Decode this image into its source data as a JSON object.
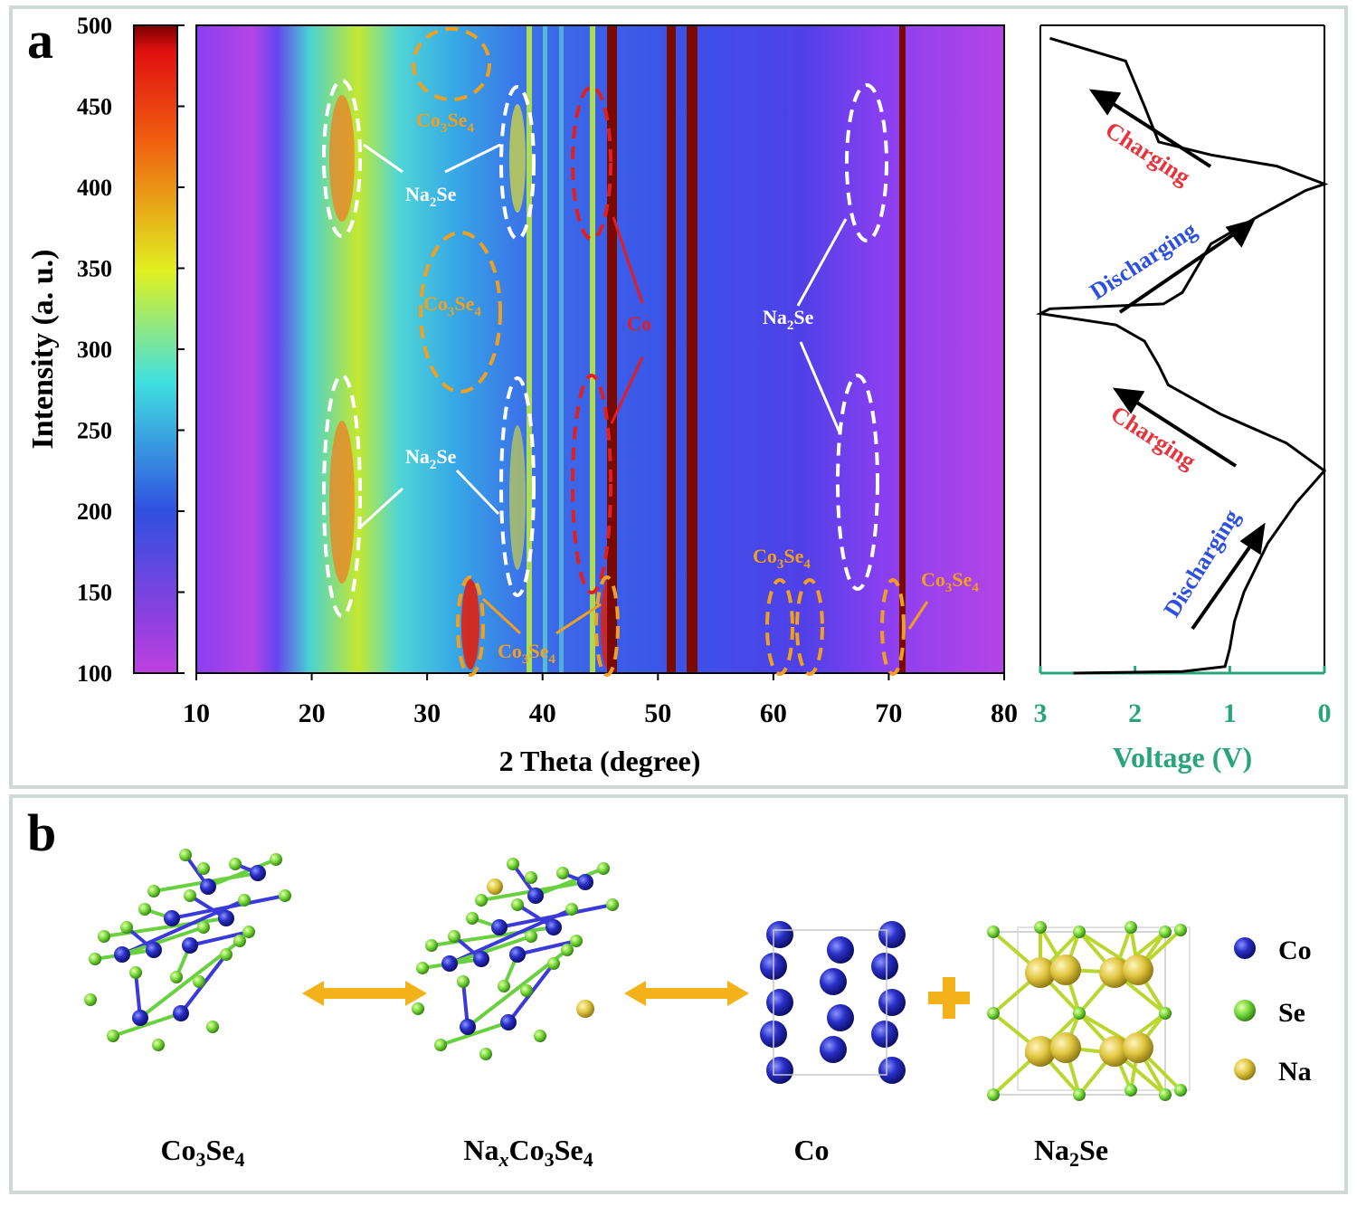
{
  "panel_a": {
    "letter": "a",
    "contour": {
      "xlabel": "2 Theta (degree)",
      "x_ticks": [
        "10",
        "20",
        "30",
        "40",
        "50",
        "60",
        "70",
        "80"
      ],
      "ylabel": "Intensity (a. u.)",
      "y_ticks": [
        "100",
        "150",
        "200",
        "250",
        "300",
        "350",
        "400",
        "450",
        "500"
      ],
      "annotations": {
        "co3se4_top": {
          "main": "Co",
          "sub": "3",
          "main2": "Se",
          "sub2": "4"
        },
        "co3se4_mid": {
          "main": "Co",
          "sub": "3",
          "main2": "Se",
          "sub2": "4"
        },
        "co3se4_bottom": {
          "main": "Co",
          "sub": "3",
          "main2": "Se",
          "sub2": "4"
        },
        "co3se4_60": {
          "main": "Co",
          "sub": "3",
          "main2": "Se",
          "sub2": "4"
        },
        "co3se4_70": {
          "main": "Co",
          "sub": "3",
          "main2": "Se",
          "sub2": "4"
        },
        "na2se_top": {
          "main": "Na",
          "sub": "2",
          "main2": "Se"
        },
        "na2se_bottom": {
          "main": "Na",
          "sub": "2",
          "main2": "Se"
        },
        "na2se_right": {
          "main": "Na",
          "sub": "2",
          "main2": "Se"
        },
        "co": "Co"
      }
    },
    "voltage": {
      "xlabel": "Voltage (V)",
      "x_ticks": [
        "3",
        "2",
        "1",
        "0"
      ],
      "labels": {
        "charging_top": "Charging",
        "discharging_top": "Discharging",
        "charging_bottom": "Charging",
        "discharging_bottom": "Discharging"
      }
    },
    "colors": {
      "voltage_axis": "#2aa57a",
      "charging": "#e8323c",
      "discharging": "#2d4fe0",
      "co3se4_marker": "#f0a020",
      "co_marker": "#e02020",
      "na2se_marker": "#ffffff"
    }
  },
  "panel_b": {
    "letter": "b",
    "structures": [
      {
        "main": "Co",
        "sub": "3",
        "main2": "Se",
        "sub2": "4"
      },
      {
        "main": "Na",
        "sub": "x",
        "main2": "Co",
        "sub2": "3",
        "main3": "Se",
        "sub3": "4"
      },
      {
        "main": "Co"
      },
      {
        "main": "Na",
        "sub": "2",
        "main2": "Se"
      }
    ],
    "legend": [
      {
        "label": "Co",
        "color": "#2a2fc8"
      },
      {
        "label": "Se",
        "color": "#59c12a"
      },
      {
        "label": "Na",
        "color": "#e8d24a"
      }
    ]
  },
  "chart_data": [
    {
      "type": "heatmap",
      "xlabel": "2 Theta (degree)",
      "ylabel": "Intensity (a. u.)",
      "xlim": [
        10,
        80
      ],
      "ylim": [
        100,
        500
      ],
      "colorbar": {
        "range": [
          100,
          500
        ],
        "colors": [
          "#c040e0",
          "#3050e0",
          "#40e0e0",
          "#e0f020",
          "#f06010",
          "#7a0000"
        ]
      },
      "annotations": [
        {
          "label": "Co3Se4",
          "x": 32.3,
          "y": 475
        },
        {
          "label": "Co3Se4",
          "x": 33.5,
          "y": 325
        },
        {
          "label": "Co3Se4",
          "x": 34,
          "y": 128
        },
        {
          "label": "Co3Se4",
          "x": 45.5,
          "y": 128
        },
        {
          "label": "Co3Se4",
          "x": 61,
          "y": 128
        },
        {
          "label": "Co3Se4",
          "x": 62.5,
          "y": 128
        },
        {
          "label": "Co3Se4",
          "x": 70.5,
          "y": 128
        },
        {
          "label": "Na2Se",
          "x": 23,
          "y": 420
        },
        {
          "label": "Na2Se",
          "x": 38,
          "y": 420
        },
        {
          "label": "Na2Se",
          "x": 23,
          "y": 210
        },
        {
          "label": "Na2Se",
          "x": 38,
          "y": 210
        },
        {
          "label": "Na2Se",
          "x": 68,
          "y": 410
        },
        {
          "label": "Na2Se",
          "x": 67,
          "y": 215
        },
        {
          "label": "Co",
          "x": 44.3,
          "y": 410
        },
        {
          "label": "Co",
          "x": 44.3,
          "y": 220
        }
      ]
    },
    {
      "type": "line",
      "xlabel": "Voltage (V)",
      "xlim": [
        3,
        0
      ],
      "series": [
        {
          "name": "",
          "points": [
            [
              2.65,
              100
            ],
            [
              1.5,
              101
            ],
            [
              1.05,
              104
            ],
            [
              1.0,
              115
            ],
            [
              0.95,
              132
            ],
            [
              0.85,
              150
            ],
            [
              0.6,
              180
            ],
            [
              0.3,
              205
            ],
            [
              0.0,
              225
            ],
            [
              0.4,
              242
            ],
            [
              1.1,
              260
            ],
            [
              1.65,
              278
            ],
            [
              1.75,
              290
            ],
            [
              1.9,
              305
            ],
            [
              2.2,
              315
            ],
            [
              3.0,
              322
            ],
            [
              2.9,
              325
            ],
            [
              1.7,
              328
            ],
            [
              1.5,
              335
            ],
            [
              1.35,
              350
            ],
            [
              1.2,
              365
            ],
            [
              0.7,
              382
            ],
            [
              0.2,
              398
            ],
            [
              0.0,
              402
            ],
            [
              0.5,
              413
            ],
            [
              1.2,
              420
            ],
            [
              1.75,
              428
            ],
            [
              1.9,
              450
            ],
            [
              2.1,
              478
            ],
            [
              2.9,
              492
            ]
          ]
        }
      ]
    }
  ]
}
